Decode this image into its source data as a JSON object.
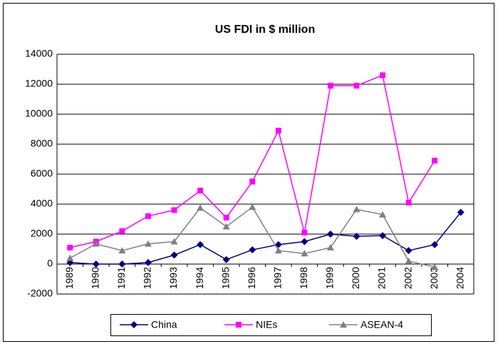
{
  "chart_data": {
    "type": "line",
    "title": "US FDI in $ million",
    "categories": [
      "1989",
      "1990",
      "1991",
      "1992",
      "1993",
      "1994",
      "1995",
      "1996",
      "1997",
      "1998",
      "1999",
      "2000",
      "2001",
      "2002",
      "2003",
      "2004"
    ],
    "series": [
      {
        "name": "China",
        "color": "#000080",
        "marker": "diamond",
        "values": [
          100,
          0,
          0,
          100,
          600,
          1300,
          300,
          950,
          1300,
          1500,
          2000,
          1850,
          1900,
          900,
          1300,
          3450
        ]
      },
      {
        "name": "NIEs",
        "color": "#ff00ff",
        "marker": "square",
        "values": [
          1100,
          1500,
          2200,
          3200,
          3600,
          4900,
          3100,
          5500,
          8900,
          2100,
          11900,
          11900,
          12600,
          4100,
          6900,
          null
        ]
      },
      {
        "name": "ASEAN-4",
        "color": "#808080",
        "marker": "triangle",
        "values": [
          400,
          1350,
          900,
          1350,
          1500,
          3750,
          2500,
          3800,
          900,
          700,
          1100,
          3650,
          3300,
          200,
          -200,
          null
        ]
      }
    ],
    "ylim": [
      -2000,
      14000
    ],
    "yticks": [
      -2000,
      0,
      2000,
      4000,
      6000,
      8000,
      10000,
      12000,
      14000
    ],
    "grid": true,
    "legend": "bottom"
  }
}
